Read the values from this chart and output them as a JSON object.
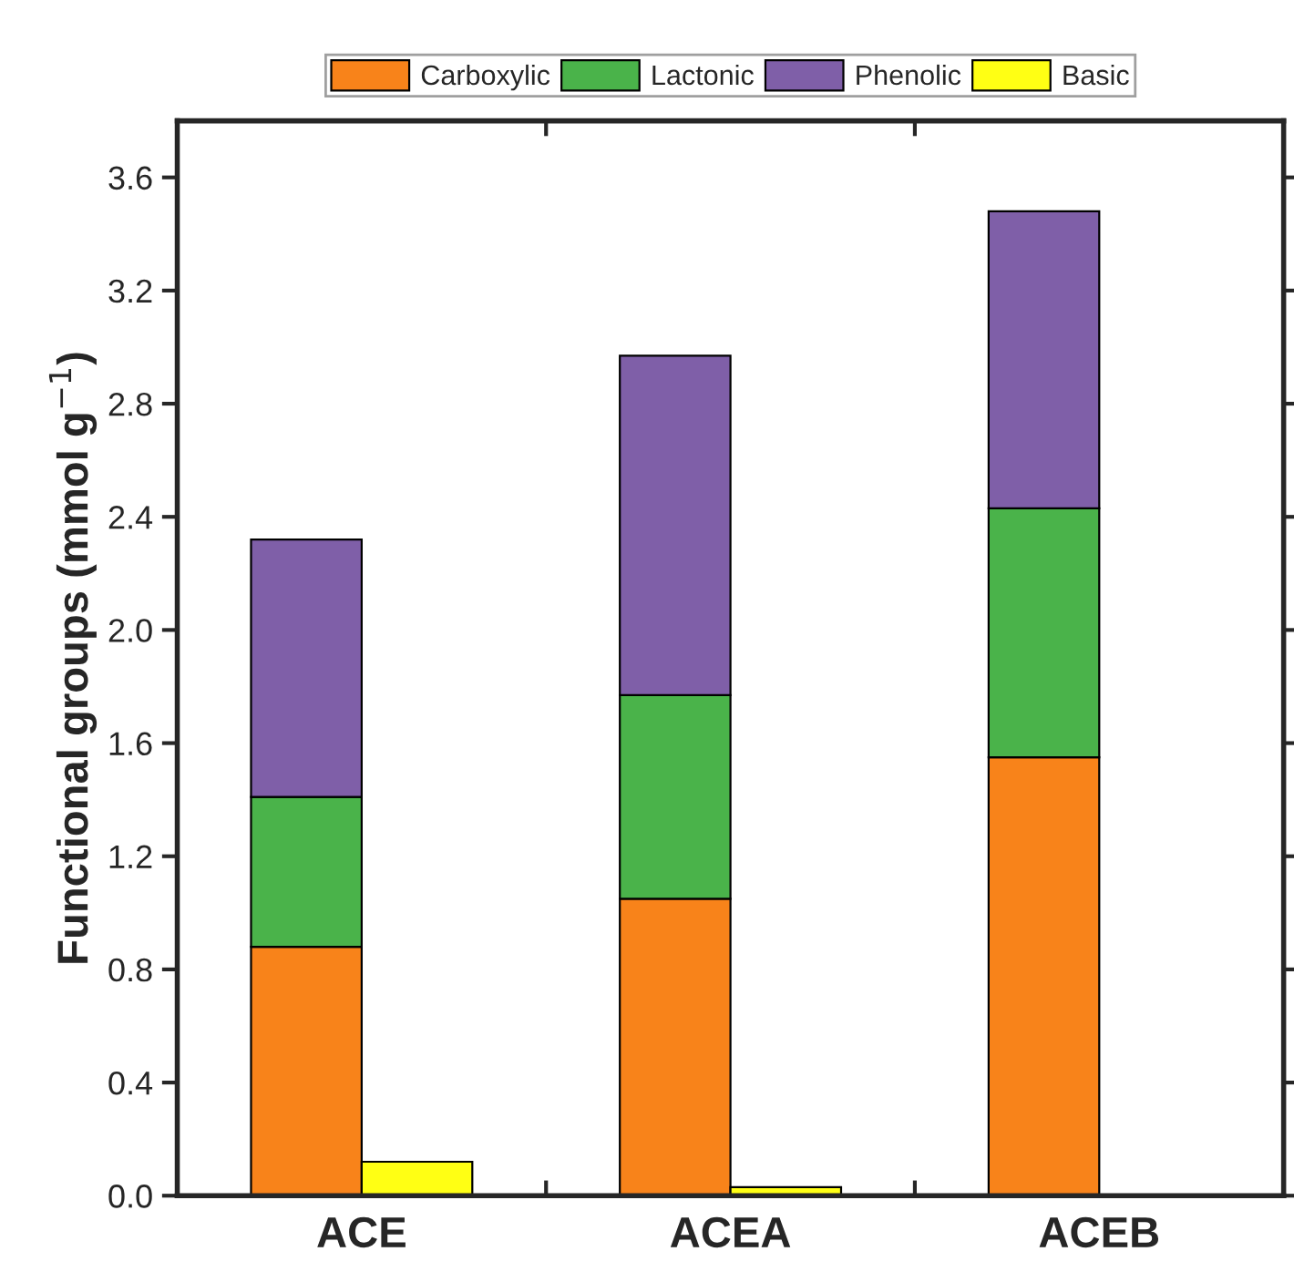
{
  "chart_data": {
    "type": "bar",
    "ylabel": "Functional groups (mmol g$^{−1}$)",
    "categories": [
      "ACE",
      "ACEA",
      "ACEB"
    ],
    "series": [
      {
        "name": "Carboxylic",
        "color": "#f8831a",
        "values": [
          0.88,
          1.05,
          1.55
        ],
        "base": [
          0,
          0,
          0
        ]
      },
      {
        "name": "Lactonic",
        "color": "#4ab34a",
        "values": [
          0.53,
          0.72,
          0.88
        ],
        "base": [
          0.88,
          1.05,
          1.55
        ]
      },
      {
        "name": "Phenolic",
        "color": "#7f5fa8",
        "values": [
          0.91,
          1.2,
          1.05
        ],
        "base": [
          1.41,
          1.77,
          2.43
        ]
      },
      {
        "name": "Basic",
        "color": "#ffff14",
        "values": [
          0.12,
          0.03,
          null
        ],
        "base": [
          0,
          0,
          null
        ]
      }
    ],
    "ylim": [
      0,
      3.8
    ],
    "yticks": [
      {
        "value": 0,
        "label": "0.0"
      },
      0.4,
      0.8,
      1.2,
      1.6,
      {
        "value": 2,
        "label": "2.0"
      },
      2.4,
      2.8,
      3.2,
      3.6
    ],
    "legend": "top",
    "grid": false
  }
}
